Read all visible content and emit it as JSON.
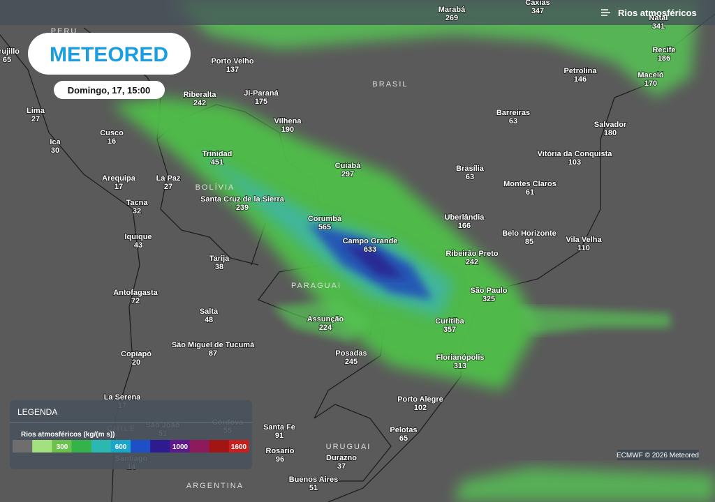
{
  "header": {
    "layer": "Rios atmosféricos",
    "logo": "METEORED",
    "datetime": "Domingo, 17, 15:00"
  },
  "countries": [
    "PERU",
    "BRASIL",
    "BOLÍVIA",
    "PARAGUAI",
    "URUGUAI",
    "CHILE",
    "ARGENTINA"
  ],
  "cities": [
    {
      "name": "Marabá",
      "value": 269
    },
    {
      "name": "Caxias",
      "value": 347
    },
    {
      "name": "Natal",
      "value": 341
    },
    {
      "name": "Trujillo",
      "value": 65
    },
    {
      "name": "Porto Velho",
      "value": 137
    },
    {
      "name": "Recife",
      "value": 186
    },
    {
      "name": "Petrolina",
      "value": 146
    },
    {
      "name": "Maceió",
      "value": 170
    },
    {
      "name": "Riberalta",
      "value": 242
    },
    {
      "name": "Ji-Paraná",
      "value": 175
    },
    {
      "name": "Lima",
      "value": 27
    },
    {
      "name": "Barreiras",
      "value": 63
    },
    {
      "name": "Vilhena",
      "value": 190
    },
    {
      "name": "Salvador",
      "value": 180
    },
    {
      "name": "Cusco",
      "value": 16
    },
    {
      "name": "Ica",
      "value": 30
    },
    {
      "name": "Trinidad",
      "value": 451
    },
    {
      "name": "Vitória da Conquista",
      "value": 103
    },
    {
      "name": "Cuiabá",
      "value": 297
    },
    {
      "name": "Brasília",
      "value": 63
    },
    {
      "name": "Arequipa",
      "value": 17
    },
    {
      "name": "La Paz",
      "value": 27
    },
    {
      "name": "Montes Claros",
      "value": 61
    },
    {
      "name": "Santa Cruz de la Sierra",
      "value": 239
    },
    {
      "name": "Tacna",
      "value": 32
    },
    {
      "name": "Corumbá",
      "value": 565
    },
    {
      "name": "Uberlândia",
      "value": 166
    },
    {
      "name": "Iquique",
      "value": 43
    },
    {
      "name": "Belo Horizonte",
      "value": 85
    },
    {
      "name": "Vila Velha",
      "value": 110
    },
    {
      "name": "Campo Grande",
      "value": 633
    },
    {
      "name": "Ribeirão Preto",
      "value": 242
    },
    {
      "name": "Tarija",
      "value": 38
    },
    {
      "name": "Antofagasta",
      "value": 72
    },
    {
      "name": "São Paulo",
      "value": 325
    },
    {
      "name": "Salta",
      "value": 48
    },
    {
      "name": "Assunção",
      "value": 224
    },
    {
      "name": "Curitiba",
      "value": 357
    },
    {
      "name": "São Miguel de Tucumã",
      "value": 87
    },
    {
      "name": "Posadas",
      "value": 245
    },
    {
      "name": "Copiapó",
      "value": 20
    },
    {
      "name": "Florianópolis",
      "value": 313
    },
    {
      "name": "La Serena",
      "value": 17
    },
    {
      "name": "Porto Alegre",
      "value": 102
    },
    {
      "name": "Córdova",
      "value": 55
    },
    {
      "name": "São João",
      "value": 51
    },
    {
      "name": "Santa Fe",
      "value": 91
    },
    {
      "name": "Pelotas",
      "value": 65
    },
    {
      "name": "Rosario",
      "value": 96
    },
    {
      "name": "Santiago",
      "value": 14
    },
    {
      "name": "Durazno",
      "value": 37
    },
    {
      "name": "Buenos Aires",
      "value": 51
    }
  ],
  "legend": {
    "title": "LEGENDA",
    "scale_title": "Rios atmosféricos (kg/(m s))",
    "labels": [
      "300",
      "600",
      "1000",
      "1600"
    ]
  },
  "credit": "ECMWF © 2026 Meteored"
}
